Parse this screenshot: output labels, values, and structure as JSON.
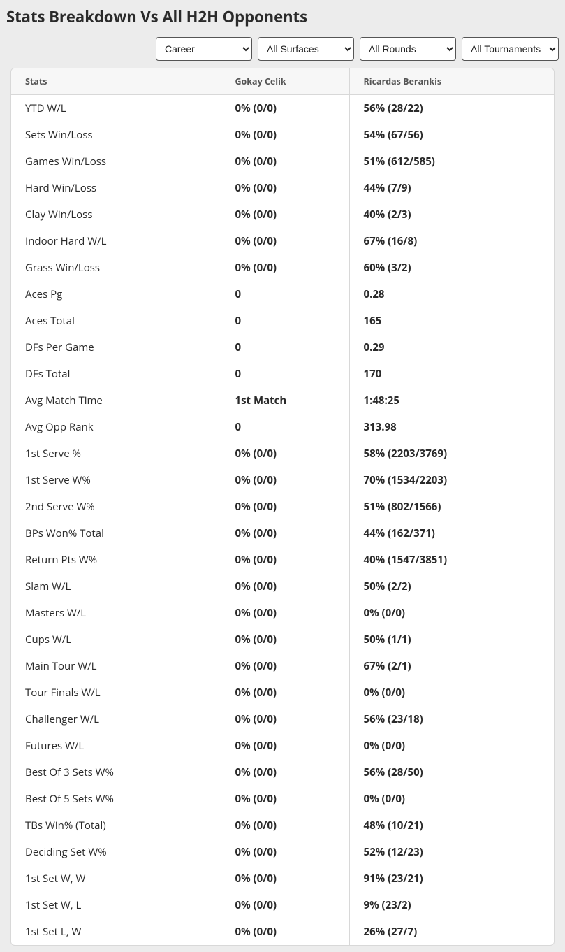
{
  "title": "Stats Breakdown Vs All H2H Opponents",
  "filters": {
    "period": "Career",
    "surface": "All Surfaces",
    "round": "All Rounds",
    "tournament": "All Tournaments"
  },
  "columns": {
    "stats": "Stats",
    "player1": "Gokay Celik",
    "player2": "Ricardas Berankis"
  },
  "rows": [
    {
      "label": "YTD W/L",
      "p1": "0% (0/0)",
      "p2": "56% (28/22)"
    },
    {
      "label": "Sets Win/Loss",
      "p1": "0% (0/0)",
      "p2": "54% (67/56)"
    },
    {
      "label": "Games Win/Loss",
      "p1": "0% (0/0)",
      "p2": "51% (612/585)"
    },
    {
      "label": "Hard Win/Loss",
      "p1": "0% (0/0)",
      "p2": "44% (7/9)"
    },
    {
      "label": "Clay Win/Loss",
      "p1": "0% (0/0)",
      "p2": "40% (2/3)"
    },
    {
      "label": "Indoor Hard W/L",
      "p1": "0% (0/0)",
      "p2": "67% (16/8)"
    },
    {
      "label": "Grass Win/Loss",
      "p1": "0% (0/0)",
      "p2": "60% (3/2)"
    },
    {
      "label": "Aces Pg",
      "p1": "0",
      "p2": "0.28"
    },
    {
      "label": "Aces Total",
      "p1": "0",
      "p2": "165"
    },
    {
      "label": "DFs Per Game",
      "p1": "0",
      "p2": "0.29"
    },
    {
      "label": "DFs Total",
      "p1": "0",
      "p2": "170"
    },
    {
      "label": "Avg Match Time",
      "p1": "1st Match",
      "p2": "1:48:25"
    },
    {
      "label": "Avg Opp Rank",
      "p1": "0",
      "p2": "313.98"
    },
    {
      "label": "1st Serve %",
      "p1": "0% (0/0)",
      "p2": "58% (2203/3769)"
    },
    {
      "label": "1st Serve W%",
      "p1": "0% (0/0)",
      "p2": "70% (1534/2203)"
    },
    {
      "label": "2nd Serve W%",
      "p1": "0% (0/0)",
      "p2": "51% (802/1566)"
    },
    {
      "label": "BPs Won% Total",
      "p1": "0% (0/0)",
      "p2": "44% (162/371)"
    },
    {
      "label": "Return Pts W%",
      "p1": "0% (0/0)",
      "p2": "40% (1547/3851)"
    },
    {
      "label": "Slam W/L",
      "p1": "0% (0/0)",
      "p2": "50% (2/2)"
    },
    {
      "label": "Masters W/L",
      "p1": "0% (0/0)",
      "p2": "0% (0/0)"
    },
    {
      "label": "Cups W/L",
      "p1": "0% (0/0)",
      "p2": "50% (1/1)"
    },
    {
      "label": "Main Tour W/L",
      "p1": "0% (0/0)",
      "p2": "67% (2/1)"
    },
    {
      "label": "Tour Finals W/L",
      "p1": "0% (0/0)",
      "p2": "0% (0/0)"
    },
    {
      "label": "Challenger W/L",
      "p1": "0% (0/0)",
      "p2": "56% (23/18)"
    },
    {
      "label": "Futures W/L",
      "p1": "0% (0/0)",
      "p2": "0% (0/0)"
    },
    {
      "label": "Best Of 3 Sets W%",
      "p1": "0% (0/0)",
      "p2": "56% (28/50)"
    },
    {
      "label": "Best Of 5 Sets W%",
      "p1": "0% (0/0)",
      "p2": "0% (0/0)"
    },
    {
      "label": "TBs Win% (Total)",
      "p1": "0% (0/0)",
      "p2": "48% (10/21)"
    },
    {
      "label": "Deciding Set W%",
      "p1": "0% (0/0)",
      "p2": "52% (12/23)"
    },
    {
      "label": "1st Set W, W",
      "p1": "0% (0/0)",
      "p2": "91% (23/21)"
    },
    {
      "label": "1st Set W, L",
      "p1": "0% (0/0)",
      "p2": "9% (23/2)"
    },
    {
      "label": "1st Set L, W",
      "p1": "0% (0/0)",
      "p2": "26% (27/7)"
    }
  ]
}
